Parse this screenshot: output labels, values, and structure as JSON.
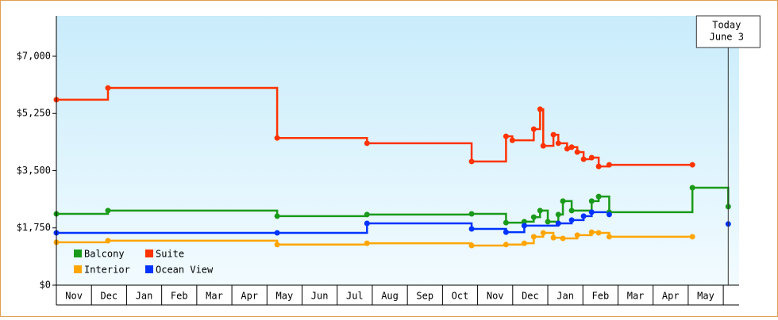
{
  "chart_data": {
    "type": "step-line",
    "ylim": [
      0,
      8235
    ],
    "yticks": [
      {
        "value": 0,
        "label": "$0"
      },
      {
        "value": 1750,
        "label": "$1,750"
      },
      {
        "value": 3500,
        "label": "$3,500"
      },
      {
        "value": 5250,
        "label": "$5,250"
      },
      {
        "value": 7000,
        "label": "$7,000"
      }
    ],
    "xlim": [
      0,
      19.45
    ],
    "xticks": [
      {
        "value": 0.5,
        "label": "Nov"
      },
      {
        "value": 1.5,
        "label": "Dec"
      },
      {
        "value": 2.5,
        "label": "Jan"
      },
      {
        "value": 3.5,
        "label": "Feb"
      },
      {
        "value": 4.5,
        "label": "Mar"
      },
      {
        "value": 5.5,
        "label": "Apr"
      },
      {
        "value": 6.5,
        "label": "May"
      },
      {
        "value": 7.5,
        "label": "Jun"
      },
      {
        "value": 8.5,
        "label": "Jul"
      },
      {
        "value": 9.5,
        "label": "Aug"
      },
      {
        "value": 10.5,
        "label": "Sep"
      },
      {
        "value": 11.5,
        "label": "Oct"
      },
      {
        "value": 12.5,
        "label": "Nov"
      },
      {
        "value": 13.5,
        "label": "Dec"
      },
      {
        "value": 14.5,
        "label": "Jan"
      },
      {
        "value": 15.5,
        "label": "Feb"
      },
      {
        "value": 16.5,
        "label": "Mar"
      },
      {
        "value": 17.5,
        "label": "Apr"
      },
      {
        "value": 18.5,
        "label": "May"
      }
    ],
    "today": {
      "x": 19.14,
      "label": [
        "Today",
        "June 3"
      ]
    },
    "series": [
      {
        "name": "Balcony",
        "color": "#1a9a1a",
        "x": [
          0,
          1.47,
          6.29,
          8.85,
          11.83,
          12.81,
          13.33,
          13.6,
          13.78,
          14.0,
          14.3,
          14.43,
          14.68,
          15.25,
          15.45,
          15.75,
          18.12,
          19.14
        ],
        "values": [
          2180,
          2280,
          2110,
          2160,
          2180,
          1910,
          1940,
          2080,
          2280,
          1940,
          2160,
          2570,
          2280,
          2570,
          2710,
          2230,
          2980,
          2400
        ]
      },
      {
        "name": "Suite",
        "color": "#ff3300",
        "x": [
          0,
          1.47,
          6.29,
          8.85,
          11.83,
          12.81,
          12.99,
          13.6,
          13.78,
          13.87,
          14.16,
          14.3,
          14.55,
          14.68,
          14.84,
          15.02,
          15.25,
          15.45,
          15.75,
          18.12
        ],
        "values": [
          5670,
          6030,
          4500,
          4340,
          3780,
          4550,
          4430,
          4770,
          5380,
          4260,
          4600,
          4340,
          4170,
          4220,
          4070,
          3850,
          3900,
          3630,
          3680,
          3680
        ]
      },
      {
        "name": "Interior",
        "color": "#ffa500",
        "x": [
          0,
          1.47,
          6.29,
          8.85,
          11.83,
          12.81,
          13.33,
          13.6,
          13.87,
          14.16,
          14.43,
          14.84,
          15.25,
          15.45,
          15.75,
          18.12
        ],
        "values": [
          1310,
          1360,
          1240,
          1280,
          1210,
          1240,
          1280,
          1480,
          1600,
          1450,
          1430,
          1530,
          1620,
          1600,
          1480,
          1480
        ]
      },
      {
        "name": "Ocean View",
        "color": "#0033ff",
        "x": [
          0,
          6.29,
          8.85,
          11.83,
          12.81,
          13.33,
          14.3,
          14.68,
          15.02,
          15.25,
          15.75,
          17.0,
          19.14
        ],
        "values": [
          1600,
          1600,
          1890,
          1720,
          1620,
          1820,
          1890,
          1990,
          2110,
          2230,
          2160,
          null,
          1870
        ]
      }
    ]
  }
}
